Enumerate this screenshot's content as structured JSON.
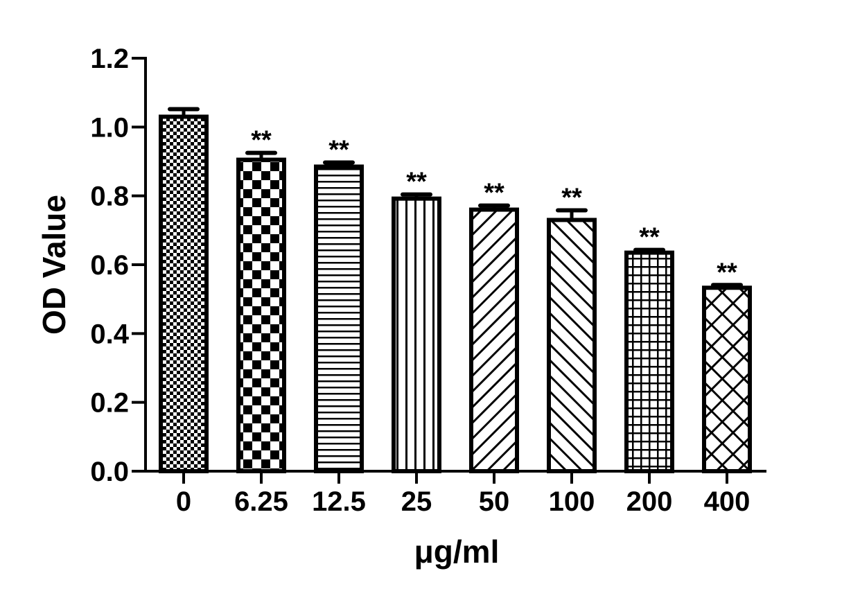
{
  "chart_data": {
    "type": "bar",
    "title": "",
    "xlabel": "μg/ml",
    "ylabel": "OD Value",
    "ylim": [
      0,
      1.2
    ],
    "yticks": [
      "0.0",
      "0.2",
      "0.4",
      "0.6",
      "0.8",
      "1.0",
      "1.2"
    ],
    "categories": [
      "0",
      "6.25",
      "12.5",
      "25",
      "50",
      "100",
      "200",
      "400"
    ],
    "values": [
      1.03,
      0.905,
      0.885,
      0.792,
      0.76,
      0.73,
      0.635,
      0.533
    ],
    "error": [
      0.022,
      0.02,
      0.012,
      0.012,
      0.012,
      0.028,
      0.008,
      0.008
    ],
    "significance": [
      "",
      "**",
      "**",
      "**",
      "**",
      "**",
      "**",
      "**"
    ],
    "patterns": [
      "fine-checker",
      "coarse-checker",
      "horizontal-lines",
      "vertical-lines",
      "diagonal-forward",
      "diagonal-backward",
      "grid",
      "crosshatch"
    ],
    "grid": false,
    "legend": "none",
    "colors": {
      "bar_fill": "#ffffff",
      "bar_stroke": "#000000"
    }
  }
}
